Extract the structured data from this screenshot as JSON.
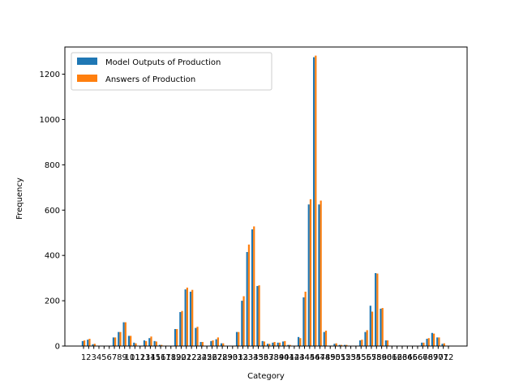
{
  "chart_data": {
    "type": "bar",
    "xlabel": "Category",
    "ylabel": "Frequency",
    "ylim": [
      0,
      1320
    ],
    "yticks": [
      0,
      200,
      400,
      600,
      800,
      1000,
      1200
    ],
    "grid": false,
    "legend_position": "top-left",
    "categories": [
      "1",
      "2",
      "3",
      "4",
      "5",
      "6",
      "7",
      "8",
      "9",
      "10",
      "11",
      "12",
      "13",
      "14",
      "15",
      "16",
      "17",
      "18",
      "19",
      "20",
      "21",
      "22",
      "23",
      "24",
      "25",
      "26",
      "27",
      "28",
      "29",
      "30",
      "31",
      "32",
      "33",
      "34",
      "35",
      "36",
      "37",
      "38",
      "39",
      "40",
      "41",
      "42",
      "43",
      "44",
      "45",
      "46",
      "47",
      "48",
      "49",
      "50",
      "51",
      "52",
      "53",
      "54",
      "55",
      "56",
      "57",
      "58",
      "59",
      "60",
      "61",
      "62",
      "63",
      "64",
      "65",
      "66",
      "67",
      "68",
      "69",
      "70",
      "71",
      "72"
    ],
    "series": [
      {
        "name": "Model Outputs of Production",
        "color": "#1f77b4",
        "values": [
          22,
          28,
          8,
          0,
          0,
          0,
          38,
          62,
          105,
          45,
          15,
          0,
          25,
          35,
          22,
          5,
          0,
          0,
          75,
          150,
          250,
          240,
          80,
          18,
          0,
          22,
          30,
          12,
          0,
          0,
          62,
          200,
          415,
          515,
          265,
          22,
          10,
          15,
          15,
          20,
          5,
          0,
          40,
          215,
          625,
          1275,
          625,
          62,
          0,
          10,
          5,
          5,
          0,
          0,
          25,
          62,
          178,
          322,
          165,
          25,
          0,
          0,
          0,
          0,
          0,
          0,
          15,
          32,
          58,
          38,
          10,
          0
        ]
      },
      {
        "name": "Answers of Production",
        "color": "#ff7f0e",
        "values": [
          25,
          32,
          10,
          0,
          0,
          0,
          38,
          62,
          105,
          45,
          12,
          0,
          22,
          42,
          20,
          5,
          2,
          0,
          75,
          155,
          258,
          248,
          85,
          18,
          0,
          25,
          38,
          12,
          0,
          0,
          62,
          220,
          448,
          528,
          268,
          20,
          10,
          18,
          15,
          22,
          5,
          0,
          35,
          240,
          648,
          1282,
          642,
          68,
          2,
          12,
          5,
          5,
          0,
          0,
          28,
          70,
          152,
          320,
          168,
          25,
          0,
          0,
          0,
          0,
          0,
          0,
          15,
          35,
          55,
          38,
          12,
          0
        ]
      }
    ]
  }
}
